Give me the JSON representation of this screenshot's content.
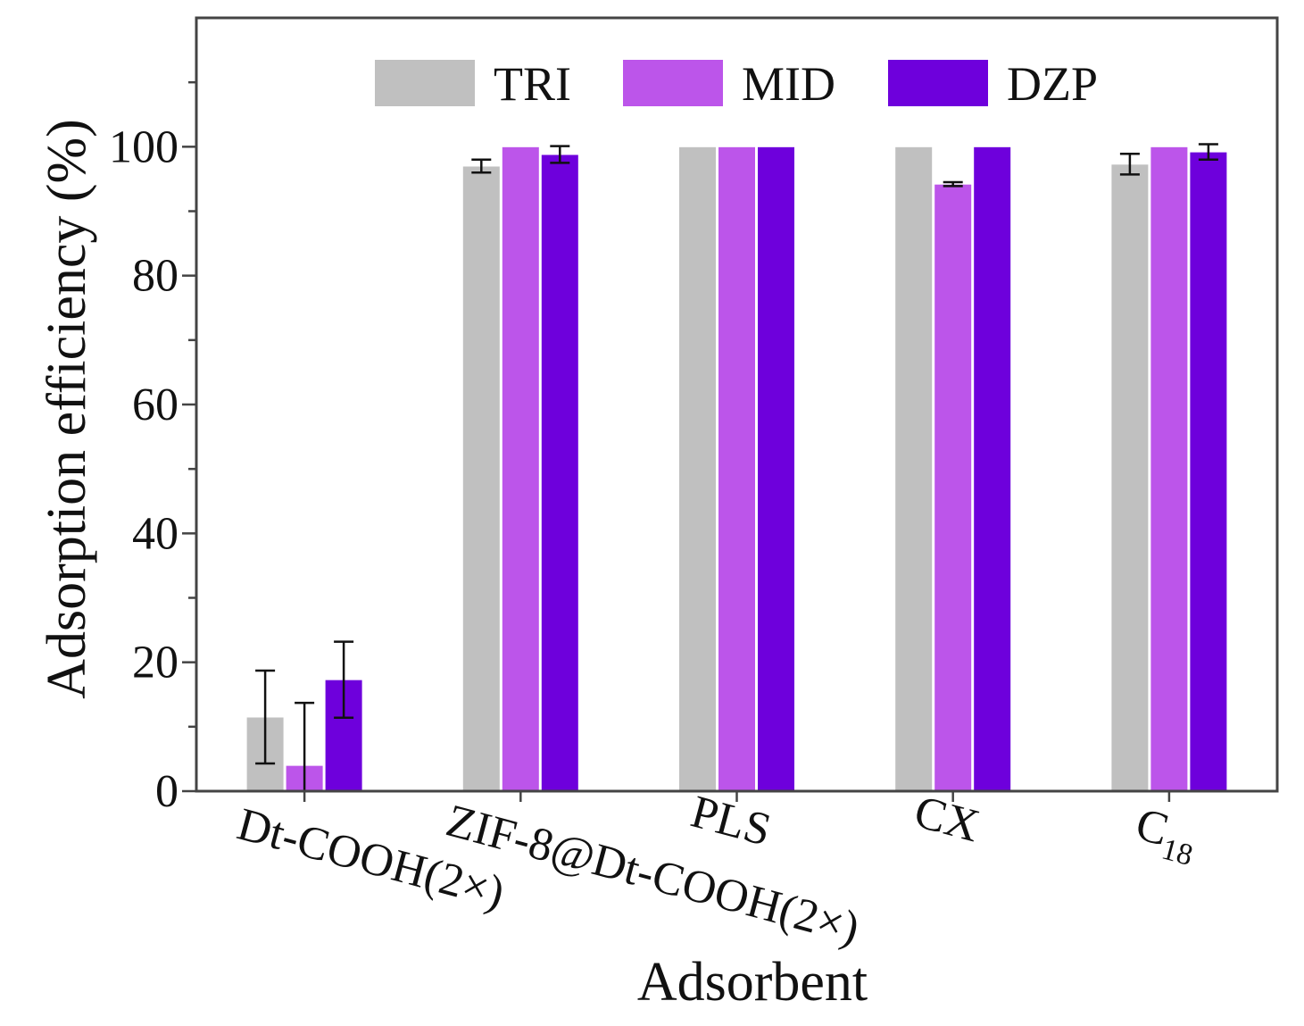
{
  "chart_data": {
    "type": "bar",
    "title": "",
    "xlabel": "Adsorbent",
    "ylabel": "Adsorption efficiency (%)",
    "ylim": [
      0,
      120
    ],
    "yticks": [
      0,
      20,
      40,
      60,
      80,
      100
    ],
    "grid": false,
    "legend_position": "top",
    "categories": [
      "Dt-COOH(2×)",
      "ZIF-8@Dt-COOH(2×)",
      "PLS",
      "CX",
      "C"
    ],
    "category_subscripts": [
      "",
      "",
      "",
      "",
      "18"
    ],
    "series": [
      {
        "name": "TRI",
        "color": "#c0c0c0",
        "values": [
          11.5,
          97.0,
          100.0,
          100.0,
          97.3
        ],
        "errors": [
          7.2,
          1.0,
          0.0,
          0.0,
          1.6
        ]
      },
      {
        "name": "MID",
        "color": "#bc55ea",
        "values": [
          4.0,
          100.0,
          100.0,
          94.2,
          100.0
        ],
        "errors": [
          9.7,
          0.0,
          0.0,
          0.3,
          0.0
        ]
      },
      {
        "name": "DZP",
        "color": "#6e00dc",
        "values": [
          17.3,
          98.8,
          100.0,
          100.0,
          99.2
        ],
        "errors": [
          5.9,
          1.3,
          0.0,
          0.0,
          1.2
        ]
      }
    ]
  }
}
